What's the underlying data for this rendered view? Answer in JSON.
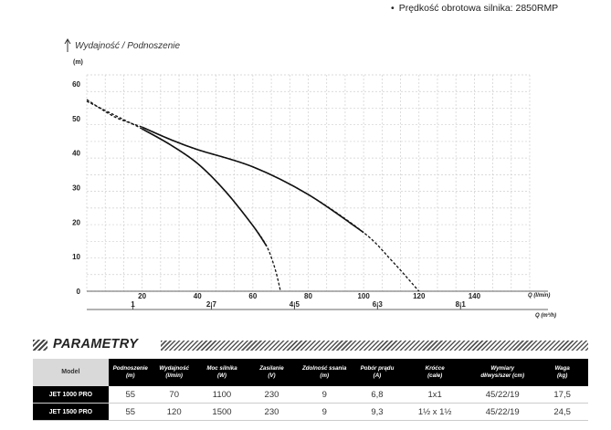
{
  "top_note": {
    "bullet": "•",
    "text": "Prędkość obrotowa silnika: 2850RMP"
  },
  "chart_data": {
    "type": "line",
    "title": "Wydajność / Podnoszenie",
    "ylabel": "(m)",
    "ylim": [
      0,
      60
    ],
    "yticks": [
      0,
      10,
      20,
      30,
      40,
      50,
      60
    ],
    "x_lmin_label": "Q (l/min)",
    "xlim": [
      0,
      160
    ],
    "x_lmin_ticks": [
      "20",
      "40",
      "60",
      "80",
      "100",
      "120",
      "140"
    ],
    "x_m3h_label": "Q (m³/h)",
    "x_m3h_ticks": [
      "1",
      "2,7",
      "4,5",
      "6,3",
      "8,1"
    ],
    "series": [
      {
        "values": [
          [
            0,
            55
          ],
          [
            10,
            51
          ],
          [
            20,
            47
          ],
          [
            30,
            42.5
          ],
          [
            40,
            37
          ],
          [
            50,
            29
          ],
          [
            60,
            19
          ],
          [
            65,
            13
          ],
          [
            68,
            6.5
          ],
          [
            70,
            0
          ]
        ]
      },
      {
        "values": [
          [
            0,
            55.5
          ],
          [
            10,
            50.5
          ],
          [
            20,
            47.5
          ],
          [
            30,
            44
          ],
          [
            40,
            41
          ],
          [
            60,
            36
          ],
          [
            80,
            28
          ],
          [
            100,
            17
          ],
          [
            110,
            9
          ],
          [
            120,
            0
          ]
        ]
      }
    ]
  },
  "parametry": {
    "title": "PARAMETRY",
    "headers": [
      {
        "main": "Model",
        "sub": ""
      },
      {
        "main": "Podnoszenie",
        "sub": "(m)"
      },
      {
        "main": "Wydajność",
        "sub": "(l/min)"
      },
      {
        "main": "Moc silnika",
        "sub": "(W)"
      },
      {
        "main": "Zasilanie",
        "sub": "(V)"
      },
      {
        "main": "Zdolność ssania",
        "sub": "(m)"
      },
      {
        "main": "Pobór prądu",
        "sub": "(A)"
      },
      {
        "main": "Króćce",
        "sub": "(cale)"
      },
      {
        "main": "Wymiary",
        "sub": "dł/wys/szer (cm)"
      },
      {
        "main": "Waga",
        "sub": "(kg)"
      }
    ],
    "rows": [
      [
        "JET 1000 PRO",
        "55",
        "70",
        "1100",
        "230",
        "9",
        "6,8",
        "1x1",
        "45/22/19",
        "17,5"
      ],
      [
        "JET 1500 PRO",
        "55",
        "120",
        "1500",
        "230",
        "9",
        "9,3",
        "1½ x 1½",
        "45/22/19",
        "24,5"
      ]
    ]
  }
}
